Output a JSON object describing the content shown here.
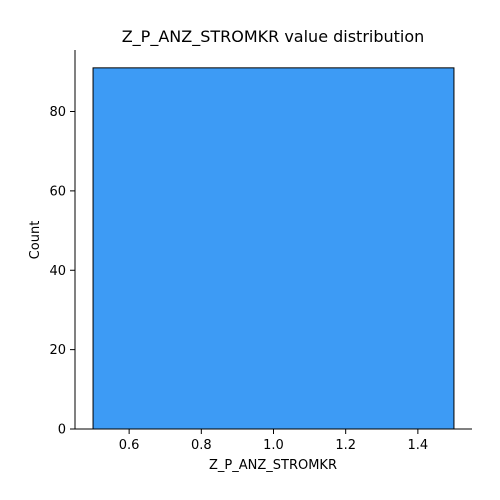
{
  "chart_data": {
    "type": "bar",
    "title": "Z_P_ANZ_STROMKR value distribution",
    "xlabel": "Z_P_ANZ_STROMKR",
    "ylabel": "Count",
    "bins": [
      {
        "x_start": 0.5,
        "x_end": 1.5,
        "value": 91
      }
    ],
    "xlim": [
      0.45,
      1.55
    ],
    "ylim": [
      0,
      95.5
    ],
    "xticks": [
      0.6,
      0.8,
      1.0,
      1.2,
      1.4
    ],
    "xtick_labels": [
      "0.6",
      "0.8",
      "1.0",
      "1.2",
      "1.4"
    ],
    "yticks": [
      0,
      20,
      40,
      60,
      80
    ],
    "ytick_labels": [
      "0",
      "20",
      "40",
      "60",
      "80"
    ],
    "grid": false,
    "bar_color": "#3d9bf5",
    "bar_edge_color": "#000000"
  }
}
